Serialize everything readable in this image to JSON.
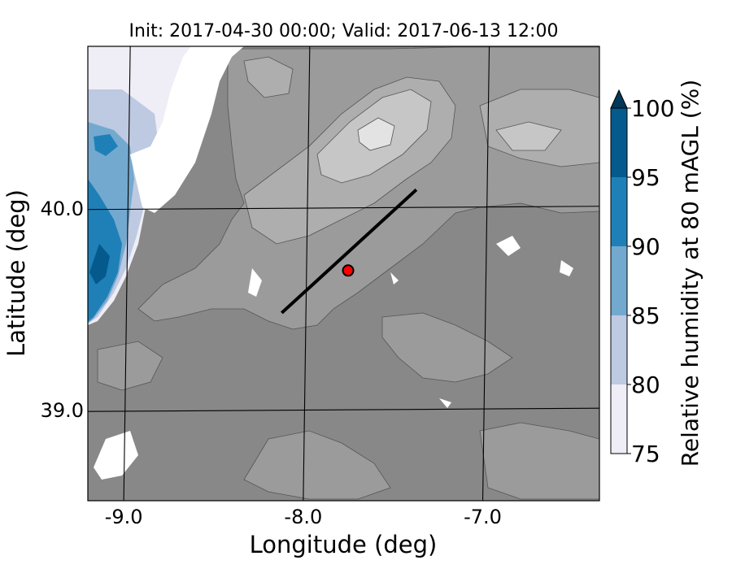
{
  "title": "Init: 2017-04-30 00:00; Valid: 2017-06-13 12:00",
  "map": {
    "xlabel": "Longitude (deg)",
    "ylabel": "Latitude (deg)",
    "x_ticks": [
      {
        "value": -9.0,
        "label": "-9.0"
      },
      {
        "value": -8.0,
        "label": "-8.0"
      },
      {
        "value": -7.0,
        "label": "-7.0"
      }
    ],
    "y_ticks": [
      {
        "value": 40.0,
        "label": "40.0"
      },
      {
        "value": 39.0,
        "label": "39.0"
      }
    ],
    "xlim": [
      -9.2,
      -6.35
    ],
    "ylim": [
      38.55,
      40.8
    ],
    "transect": {
      "start": [
        -8.12,
        39.48
      ],
      "end": [
        -7.37,
        40.09
      ]
    },
    "site_marker": {
      "lon": -7.75,
      "lat": 39.69,
      "color": "#ff0000"
    },
    "terrain_colors": [
      "#878787",
      "#9a9a9a",
      "#b0b0b0",
      "#c9c9c9",
      "#e6e6e6"
    ]
  },
  "colorbar": {
    "label": "Relative humidity at 80 mAGL (%)",
    "levels": [
      75,
      80,
      85,
      90,
      95,
      100
    ],
    "tick_labels": [
      "75",
      "80",
      "85",
      "90",
      "95",
      "100"
    ],
    "colors": [
      "#efedf5",
      "#bec9e2",
      "#74a9cf",
      "#1f80b8",
      "#045a8d"
    ],
    "extend": "max",
    "extend_color": "#023858"
  }
}
